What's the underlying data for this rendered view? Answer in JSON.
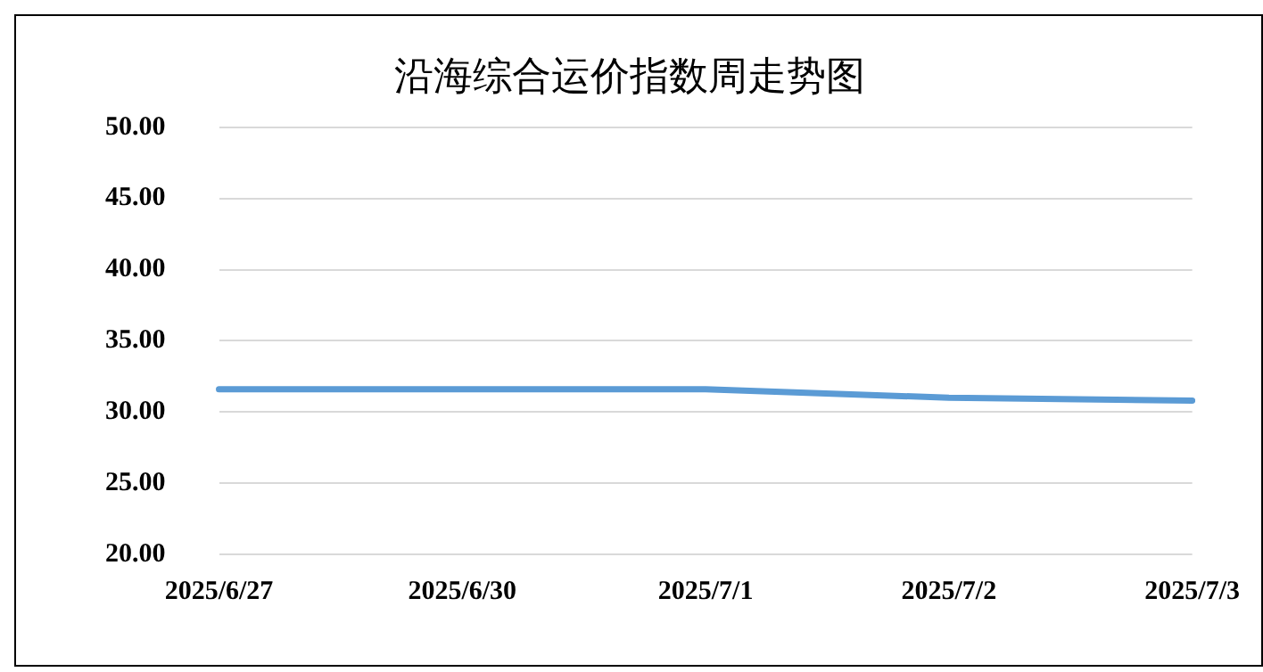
{
  "chart_data": {
    "type": "line",
    "title": "沿海综合运价指数周走势图",
    "categories": [
      "2025/6/27",
      "2025/6/30",
      "2025/7/1",
      "2025/7/2",
      "2025/7/3"
    ],
    "series": [
      {
        "color": "#5b9bd5",
        "values": [
          31.6,
          31.6,
          31.6,
          31.0,
          30.8
        ]
      }
    ],
    "ylim": [
      20,
      50
    ],
    "yticks": [
      {
        "value": 20,
        "label": "20.00"
      },
      {
        "value": 25,
        "label": "25.00"
      },
      {
        "value": 30,
        "label": "30.00"
      },
      {
        "value": 35,
        "label": "35.00"
      },
      {
        "value": 40,
        "label": "40.00"
      },
      {
        "value": 45,
        "label": "45.00"
      },
      {
        "value": 50,
        "label": "50.00"
      }
    ],
    "grid": "y",
    "legend": false,
    "marker": "none",
    "line_style": "solid"
  }
}
